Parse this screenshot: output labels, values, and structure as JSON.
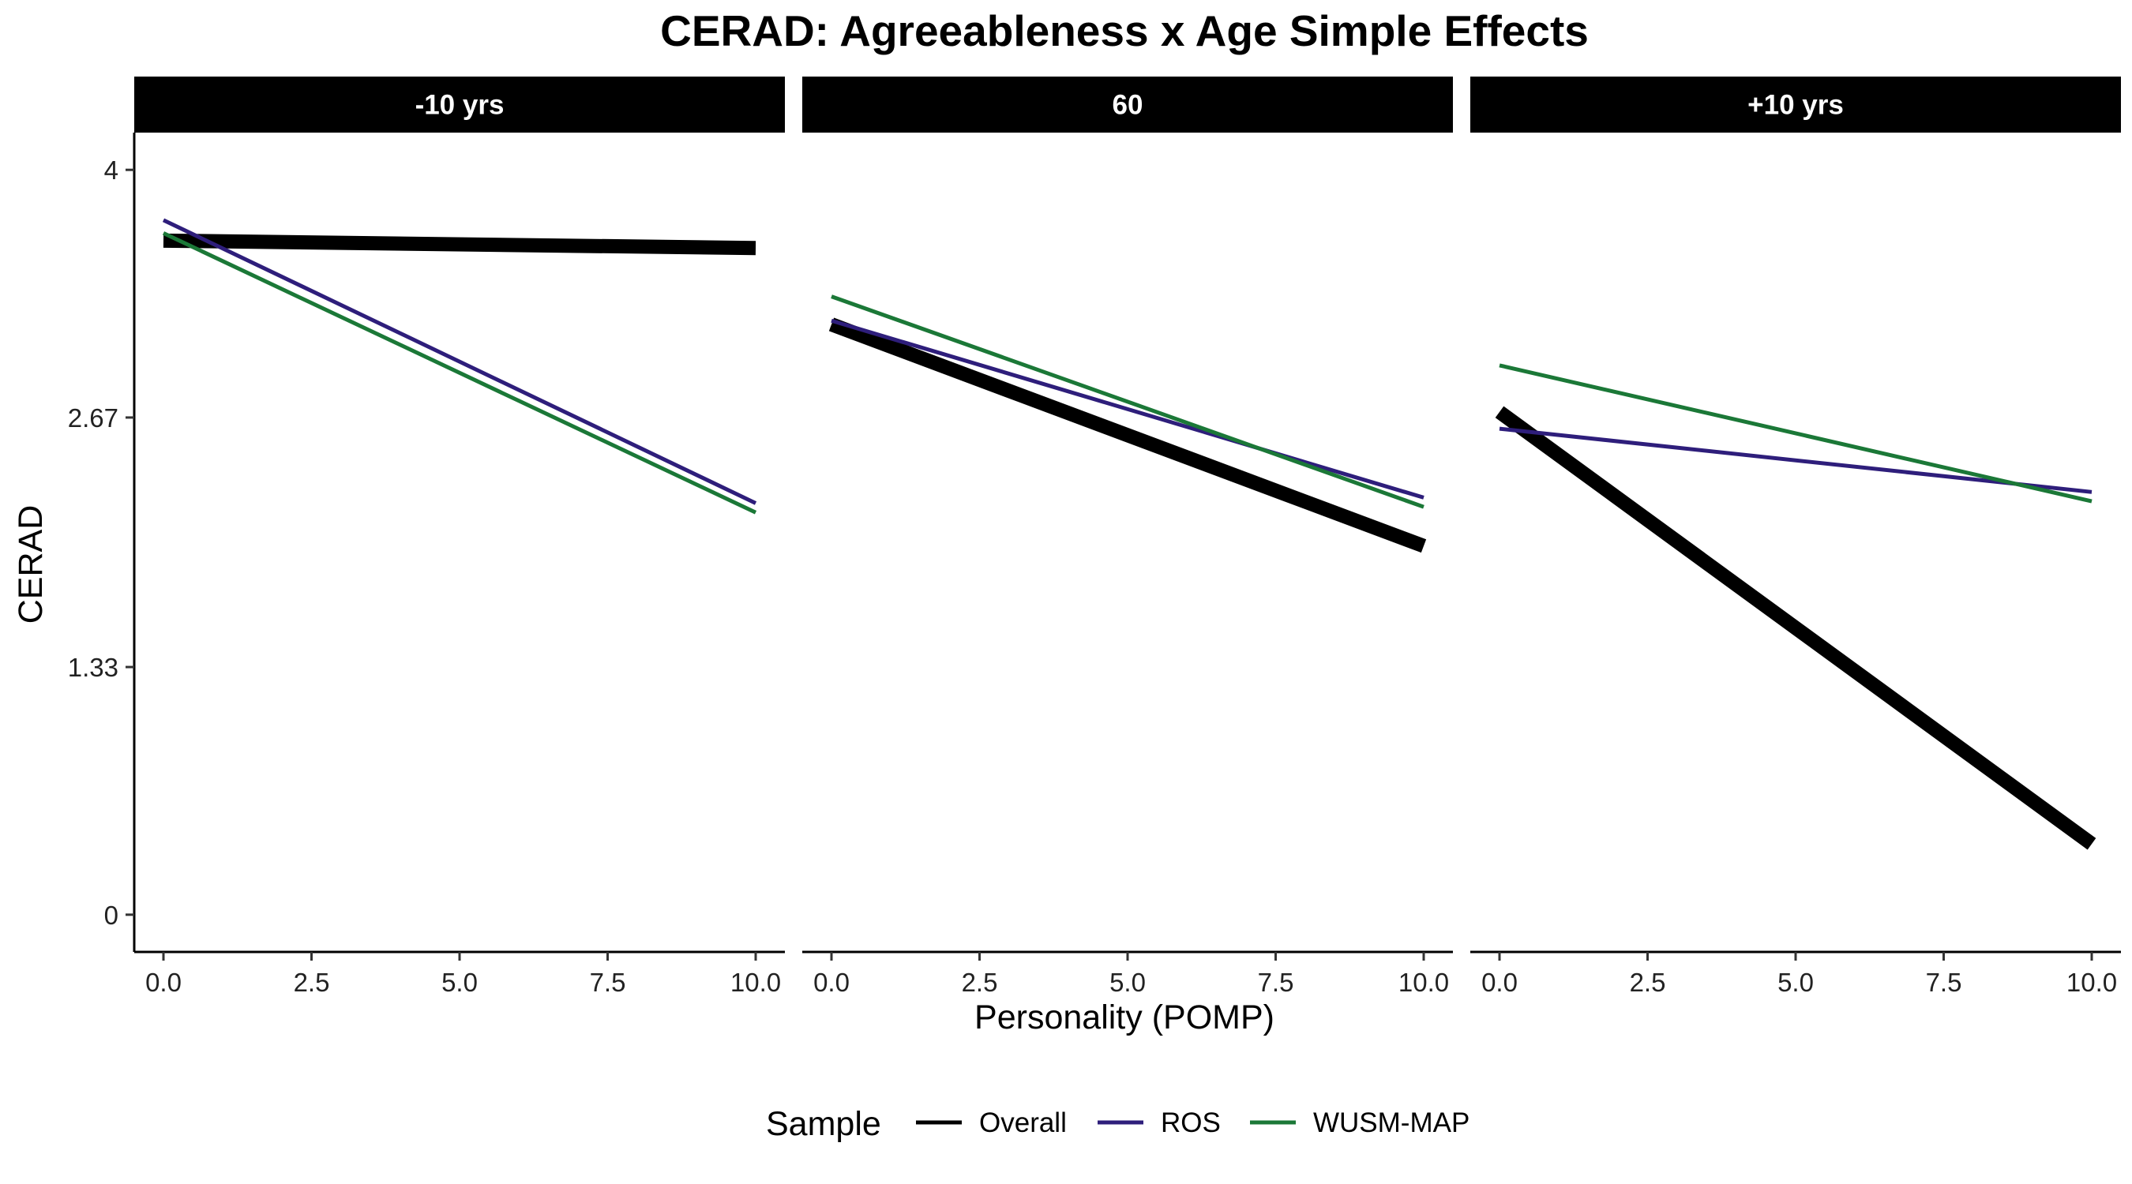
{
  "chart_data": {
    "type": "line",
    "title": "CERAD: Agreeableness x Age Simple Effects",
    "xlabel": "Personality (POMP)",
    "ylabel": "CERAD",
    "xlim": [
      -0.5,
      10.5
    ],
    "ylim": [
      -0.2,
      4.2
    ],
    "x_ticks": [
      0,
      2.5,
      5,
      7.5,
      10
    ],
    "x_tick_labels": [
      "0.0",
      "2.5",
      "5.0",
      "7.5",
      "10.0"
    ],
    "y_ticks": [
      0,
      1.33,
      2.67,
      4
    ],
    "y_tick_labels": [
      "0",
      "1.33",
      "2.67",
      "4"
    ],
    "grid": false,
    "legend": {
      "title": "Sample",
      "position": "bottom",
      "entries": [
        "Overall",
        "ROS",
        "WUSM-MAP"
      ]
    },
    "colors": {
      "Overall": "#000000",
      "ROS": "#2E1E7B",
      "WUSM-MAP": "#1B7837",
      "strip_bg": "#000000",
      "strip_text": "#FFFFFF"
    },
    "line_widths": {
      "Overall": "thick",
      "ROS": "thin",
      "WUSM-MAP": "thin"
    },
    "panels": [
      {
        "label": "-10 yrs",
        "series": [
          {
            "name": "Overall",
            "x": [
              0,
              10
            ],
            "y": [
              3.62,
              3.58
            ]
          },
          {
            "name": "ROS",
            "x": [
              0,
              10
            ],
            "y": [
              3.73,
              2.21
            ]
          },
          {
            "name": "WUSM-MAP",
            "x": [
              0,
              10
            ],
            "y": [
              3.66,
              2.16
            ]
          }
        ]
      },
      {
        "label": "60",
        "series": [
          {
            "name": "Overall",
            "x": [
              0,
              10
            ],
            "y": [
              3.17,
              1.98
            ]
          },
          {
            "name": "ROS",
            "x": [
              0,
              10
            ],
            "y": [
              3.19,
              2.24
            ]
          },
          {
            "name": "WUSM-MAP",
            "x": [
              0,
              10
            ],
            "y": [
              3.32,
              2.19
            ]
          }
        ]
      },
      {
        "label": "+10 yrs",
        "series": [
          {
            "name": "Overall",
            "x": [
              0,
              10
            ],
            "y": [
              2.7,
              0.38
            ]
          },
          {
            "name": "ROS",
            "x": [
              0,
              10
            ],
            "y": [
              2.61,
              2.27
            ]
          },
          {
            "name": "WUSM-MAP",
            "x": [
              0,
              10
            ],
            "y": [
              2.95,
              2.22
            ]
          }
        ]
      }
    ]
  }
}
